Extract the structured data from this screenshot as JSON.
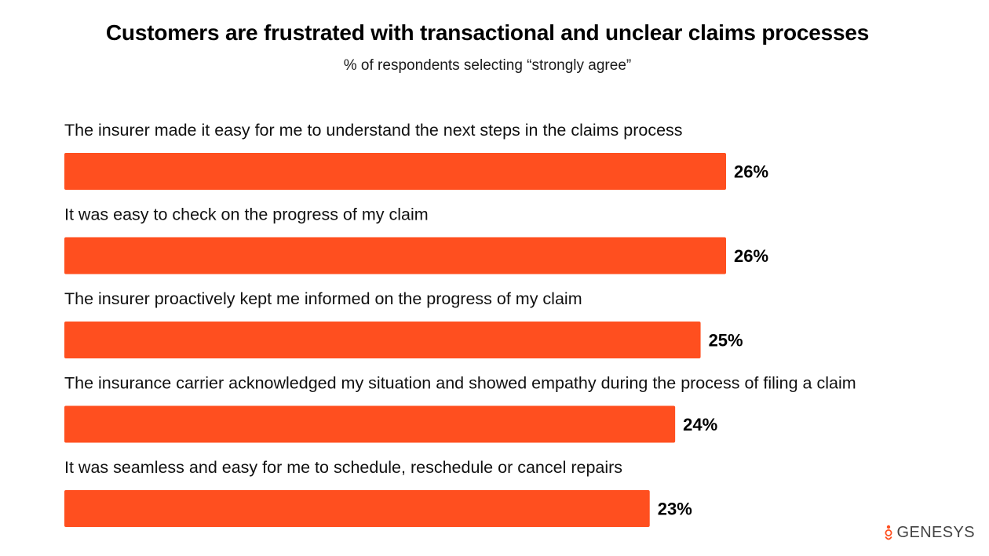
{
  "header": {
    "title": "Customers are frustrated with transactional and unclear claims processes",
    "subtitle": "% of respondents selecting “strongly agree”"
  },
  "brand": {
    "logo_text": "GENESYS",
    "logo_icon": "genesys-logo-icon",
    "accent_color": "#FF4F1F"
  },
  "chart_data": {
    "type": "bar",
    "orientation": "horizontal",
    "title": "Customers are frustrated with transactional and unclear claims processes",
    "subtitle": "% of respondents selecting “strongly agree”",
    "xlabel": "",
    "ylabel": "",
    "xlim": [
      0,
      26
    ],
    "grid": false,
    "legend": "none",
    "bar_color": "#FF4F1F",
    "categories": [
      "The insurer made it easy for me to understand the next steps in the claims process",
      "It was easy to check on the progress of my claim",
      "The insurer proactively kept me informed on the progress of my claim",
      "The insurance carrier acknowledged my situation and showed empathy during the process of filing a claim",
      "It was seamless and easy for me to schedule, reschedule or cancel repairs"
    ],
    "values": [
      26,
      26,
      25,
      24,
      23
    ],
    "value_labels": [
      "26%",
      "26%",
      "25%",
      "24%",
      "23%"
    ]
  }
}
